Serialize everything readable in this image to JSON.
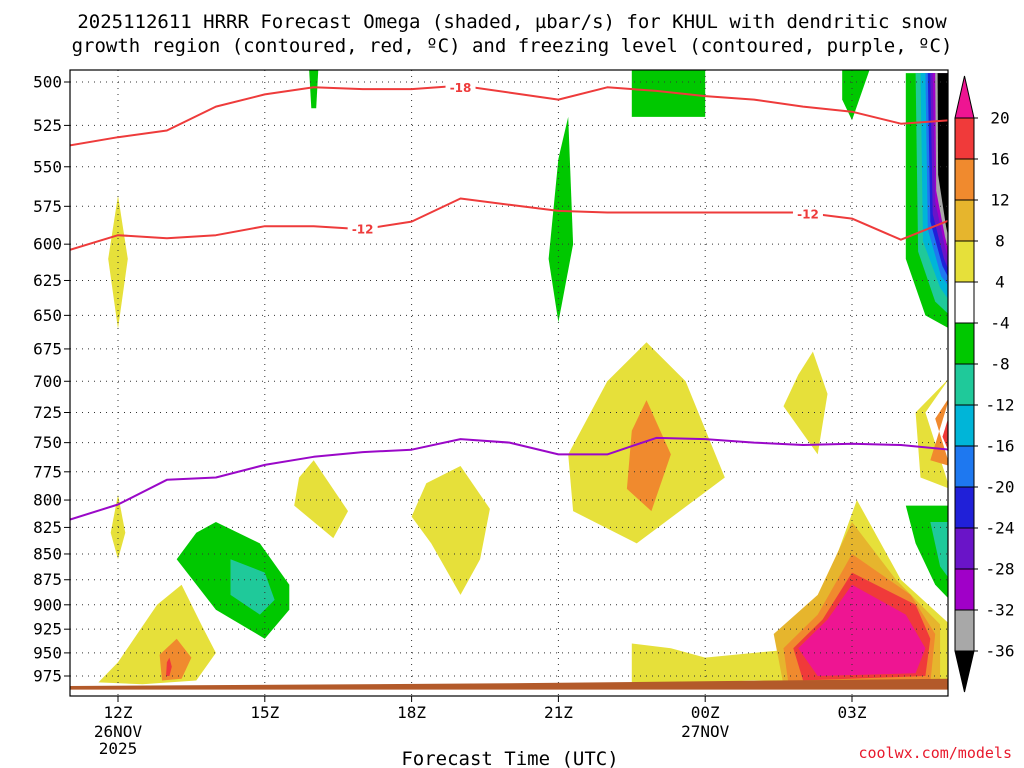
{
  "chart_data": {
    "type": "heatmap",
    "title_line1": "2025112611 HRRR Forecast Omega (shaded, µbar/s) for KHUL with dendritic snow",
    "title_line2": "growth region (contoured, red, ºC) and freezing level (contoured, purple, ºC)",
    "xlabel": "Forecast Time (UTC)",
    "credit": "coolwx.com/models",
    "y_levels_mb": [
      500,
      525,
      550,
      575,
      600,
      625,
      650,
      675,
      700,
      725,
      750,
      775,
      800,
      825,
      850,
      875,
      900,
      925,
      950,
      975
    ],
    "y_range_mb": [
      495,
      990
    ],
    "x_range_hours": [
      11,
      29
    ],
    "x_ticks": [
      {
        "hour": 12,
        "label": "12Z",
        "sub1": "26NOV",
        "sub2": "2025"
      },
      {
        "hour": 15,
        "label": "15Z",
        "sub1": "",
        "sub2": ""
      },
      {
        "hour": 18,
        "label": "18Z",
        "sub1": "",
        "sub2": ""
      },
      {
        "hour": 21,
        "label": "21Z",
        "sub1": "",
        "sub2": ""
      },
      {
        "hour": 24,
        "label": "00Z",
        "sub1": "27NOV",
        "sub2": ""
      },
      {
        "hour": 27,
        "label": "03Z",
        "sub1": "",
        "sub2": ""
      }
    ],
    "colorbar": {
      "labels": [
        "20",
        "16",
        "12",
        "8",
        "4",
        "-4",
        "-8",
        "-12",
        "-16",
        "-20",
        "-24",
        "-28",
        "-32",
        "-36"
      ],
      "colors": [
        "#ee1592",
        "#f03a3a",
        "#f08a2e",
        "#e6b52d",
        "#e6e03a",
        "#ffffff",
        "#00c800",
        "#1fc99a",
        "#00b5d8",
        "#1e78f0",
        "#2020d8",
        "#6a14c8",
        "#a000c8",
        "#a8a8a8",
        "#000000"
      ]
    },
    "series": [
      {
        "name": "-18 ºC isotherm (dendritic growth)",
        "label": "-18",
        "color": "#ee3b3b",
        "points": [
          [
            11,
            537
          ],
          [
            12,
            532
          ],
          [
            13,
            528
          ],
          [
            14,
            514
          ],
          [
            15,
            507
          ],
          [
            16,
            503
          ],
          [
            17,
            504
          ],
          [
            18,
            504
          ],
          [
            19,
            502
          ],
          [
            20,
            506
          ],
          [
            21,
            510
          ],
          [
            22,
            503
          ],
          [
            23,
            505
          ],
          [
            24,
            508
          ],
          [
            25,
            510
          ],
          [
            26,
            514
          ],
          [
            27,
            517
          ],
          [
            28,
            524
          ],
          [
            29,
            522
          ]
        ]
      },
      {
        "name": "-12 ºC isotherm (dendritic growth)",
        "label": "-12",
        "color": "#ee3b3b",
        "points": [
          [
            11,
            604
          ],
          [
            12,
            594
          ],
          [
            13,
            596
          ],
          [
            14,
            594
          ],
          [
            15,
            588
          ],
          [
            16,
            588
          ],
          [
            17,
            590
          ],
          [
            18,
            585
          ],
          [
            19,
            570
          ],
          [
            20,
            574
          ],
          [
            21,
            578
          ],
          [
            22,
            579
          ],
          [
            23,
            579
          ],
          [
            24,
            579
          ],
          [
            25,
            579
          ],
          [
            26,
            579
          ],
          [
            27,
            583
          ],
          [
            28,
            597
          ],
          [
            29,
            584
          ]
        ]
      },
      {
        "name": "Freezing level (0 ºC)",
        "label": "",
        "color": "#9a08c8",
        "points": [
          [
            11,
            818
          ],
          [
            12,
            804
          ],
          [
            13,
            782
          ],
          [
            14,
            780
          ],
          [
            15,
            769
          ],
          [
            16,
            762
          ],
          [
            17,
            758
          ],
          [
            18,
            756
          ],
          [
            19,
            747
          ],
          [
            20,
            750
          ],
          [
            21,
            760
          ],
          [
            22,
            760
          ],
          [
            23,
            746
          ],
          [
            24,
            747
          ],
          [
            25,
            750
          ],
          [
            26,
            752
          ],
          [
            27,
            751
          ],
          [
            28,
            752
          ],
          [
            29,
            756
          ]
        ]
      }
    ],
    "omega_regions": [
      {
        "color": "#e6e03a",
        "points": [
          [
            12,
            568
          ],
          [
            12.2,
            610
          ],
          [
            12,
            660
          ],
          [
            11.8,
            610
          ]
        ]
      },
      {
        "color": "#e6e03a",
        "points": [
          [
            12,
            795
          ],
          [
            12.15,
            830
          ],
          [
            12,
            855
          ],
          [
            11.85,
            830
          ]
        ]
      },
      {
        "color": "#e6e03a",
        "points": [
          [
            12.8,
            900
          ],
          [
            13.3,
            880
          ],
          [
            13.7,
            920
          ],
          [
            14,
            950
          ],
          [
            13.6,
            980
          ],
          [
            12.5,
            984
          ],
          [
            11.6,
            982
          ],
          [
            12,
            960
          ]
        ]
      },
      {
        "color": "#f08a2e",
        "points": [
          [
            12.85,
            952
          ],
          [
            13.2,
            935
          ],
          [
            13.5,
            955
          ],
          [
            13.3,
            978
          ],
          [
            12.9,
            980
          ]
        ]
      },
      {
        "color": "#f03a3a",
        "points": [
          [
            13,
            960
          ],
          [
            13.05,
            955
          ],
          [
            13.1,
            965
          ],
          [
            13.05,
            975
          ],
          [
            12.98,
            975
          ]
        ]
      },
      {
        "color": "#00c800",
        "points": [
          [
            14,
            820
          ],
          [
            14.9,
            840
          ],
          [
            15.5,
            880
          ],
          [
            15.5,
            905
          ],
          [
            15,
            935
          ],
          [
            14,
            905
          ],
          [
            13.2,
            855
          ],
          [
            13.6,
            830
          ]
        ]
      },
      {
        "color": "#1fc99a",
        "points": [
          [
            14.3,
            855
          ],
          [
            15,
            868
          ],
          [
            15.2,
            895
          ],
          [
            14.9,
            910
          ],
          [
            14.3,
            890
          ]
        ]
      },
      {
        "color": "#e6e03a",
        "points": [
          [
            16,
            765
          ],
          [
            16.7,
            810
          ],
          [
            16.4,
            835
          ],
          [
            15.6,
            805
          ],
          [
            15.7,
            780
          ]
        ]
      },
      {
        "color": "#00c800",
        "points": [
          [
            15.9,
            490
          ],
          [
            16.1,
            490
          ],
          [
            16.05,
            515
          ],
          [
            15.95,
            515
          ]
        ]
      },
      {
        "color": "#e6e03a",
        "points": [
          [
            19,
            770
          ],
          [
            19.6,
            808
          ],
          [
            19.4,
            855
          ],
          [
            19,
            890
          ],
          [
            18.4,
            840
          ],
          [
            18,
            815
          ],
          [
            18.3,
            785
          ]
        ]
      },
      {
        "color": "#00c800",
        "points": [
          [
            21.2,
            520
          ],
          [
            21.3,
            600
          ],
          [
            21,
            655
          ],
          [
            20.8,
            610
          ],
          [
            21,
            545
          ]
        ]
      },
      {
        "color": "#00c800",
        "points": [
          [
            22.5,
            490
          ],
          [
            24,
            490
          ],
          [
            24,
            520
          ],
          [
            22.5,
            520
          ]
        ]
      },
      {
        "color": "#e6e03a",
        "points": [
          [
            22.8,
            670
          ],
          [
            23.6,
            700
          ],
          [
            24.4,
            780
          ],
          [
            22.6,
            840
          ],
          [
            21.3,
            810
          ],
          [
            21.2,
            760
          ],
          [
            22,
            700
          ]
        ]
      },
      {
        "color": "#f08a2e",
        "points": [
          [
            22.8,
            715
          ],
          [
            23.3,
            760
          ],
          [
            22.9,
            810
          ],
          [
            22.4,
            790
          ],
          [
            22.5,
            740
          ]
        ]
      },
      {
        "color": "#e6e03a",
        "points": [
          [
            26.2,
            677
          ],
          [
            26.5,
            710
          ],
          [
            26.3,
            760
          ],
          [
            25.6,
            720
          ],
          [
            25.9,
            695
          ]
        ]
      },
      {
        "color": "#00c800",
        "points": [
          [
            26.8,
            490
          ],
          [
            27.4,
            490
          ],
          [
            27,
            522
          ],
          [
            26.8,
            510
          ]
        ]
      },
      {
        "color": "#e6e03a",
        "points": [
          [
            22.5,
            940
          ],
          [
            23.3,
            945
          ],
          [
            24,
            955
          ],
          [
            26,
            945
          ],
          [
            27.1,
            800
          ],
          [
            28,
            875
          ],
          [
            29,
            920
          ],
          [
            29,
            990
          ],
          [
            25,
            980
          ],
          [
            22.5,
            985
          ]
        ]
      },
      {
        "color": "#e6b52d",
        "points": [
          [
            27,
            820
          ],
          [
            27.9,
            875
          ],
          [
            28.8,
            920
          ],
          [
            28.8,
            985
          ],
          [
            25.6,
            985
          ],
          [
            25.4,
            930
          ],
          [
            26.3,
            890
          ]
        ]
      },
      {
        "color": "#f08a2e",
        "points": [
          [
            27,
            850
          ],
          [
            28.2,
            890
          ],
          [
            28.7,
            930
          ],
          [
            28.6,
            983
          ],
          [
            25.7,
            983
          ],
          [
            25.6,
            945
          ],
          [
            26.3,
            910
          ]
        ]
      },
      {
        "color": "#f03a3a",
        "points": [
          [
            27,
            868
          ],
          [
            28.3,
            900
          ],
          [
            28.6,
            935
          ],
          [
            28.5,
            975
          ],
          [
            26,
            980
          ],
          [
            25.8,
            945
          ],
          [
            26.4,
            915
          ]
        ]
      },
      {
        "color": "#ee1592",
        "points": [
          [
            27,
            880
          ],
          [
            28.1,
            910
          ],
          [
            28.5,
            945
          ],
          [
            28.3,
            972
          ],
          [
            26.3,
            975
          ],
          [
            25.9,
            945
          ],
          [
            26.5,
            915
          ]
        ]
      },
      {
        "color": "#e6e03a",
        "points": [
          [
            29,
            697
          ],
          [
            28.5,
            725
          ],
          [
            29,
            790
          ],
          [
            28.4,
            780
          ],
          [
            28.3,
            725
          ]
        ]
      },
      {
        "color": "#f08a2e",
        "points": [
          [
            29,
            712
          ],
          [
            28.7,
            730
          ],
          [
            29,
            770
          ],
          [
            28.6,
            765
          ]
        ]
      },
      {
        "color": "#f03a3a",
        "points": [
          [
            29,
            725
          ],
          [
            28.85,
            745
          ],
          [
            29,
            760
          ]
        ]
      },
      {
        "color": "#00c800",
        "points": [
          [
            28.1,
            805
          ],
          [
            29,
            805
          ],
          [
            29,
            895
          ],
          [
            28.7,
            880
          ],
          [
            28.3,
            840
          ]
        ]
      },
      {
        "color": "#1fc99a",
        "points": [
          [
            28.6,
            820
          ],
          [
            29,
            820
          ],
          [
            29,
            875
          ],
          [
            28.8,
            862
          ]
        ]
      },
      {
        "color": "#00c800",
        "points": [
          [
            28.1,
            495
          ],
          [
            29,
            495
          ],
          [
            29,
            660
          ],
          [
            28.5,
            650
          ],
          [
            28.1,
            610
          ]
        ]
      },
      {
        "color": "#1fc99a",
        "points": [
          [
            28.3,
            495
          ],
          [
            29,
            495
          ],
          [
            29,
            650
          ],
          [
            28.7,
            640
          ],
          [
            28.35,
            605
          ]
        ]
      },
      {
        "color": "#00b5d8",
        "points": [
          [
            28.4,
            495
          ],
          [
            29,
            495
          ],
          [
            29,
            640
          ],
          [
            28.8,
            630
          ],
          [
            28.45,
            598
          ]
        ]
      },
      {
        "color": "#1e78f0",
        "points": [
          [
            28.5,
            495
          ],
          [
            29,
            495
          ],
          [
            29,
            630
          ],
          [
            28.82,
            622
          ],
          [
            28.55,
            590
          ]
        ]
      },
      {
        "color": "#2020d8",
        "points": [
          [
            28.55,
            495
          ],
          [
            29,
            495
          ],
          [
            29,
            625
          ],
          [
            28.85,
            615
          ],
          [
            28.6,
            585
          ]
        ]
      },
      {
        "color": "#6a14c8",
        "points": [
          [
            28.6,
            495
          ],
          [
            29,
            495
          ],
          [
            29,
            620
          ],
          [
            28.88,
            610
          ],
          [
            28.65,
            580
          ]
        ]
      },
      {
        "color": "#a000c8",
        "points": [
          [
            28.65,
            495
          ],
          [
            29,
            495
          ],
          [
            29,
            615
          ],
          [
            28.9,
            602
          ],
          [
            28.7,
            572
          ]
        ]
      },
      {
        "color": "#a8a8a8",
        "points": [
          [
            28.7,
            495
          ],
          [
            29,
            495
          ],
          [
            29,
            608
          ],
          [
            28.9,
            595
          ],
          [
            28.72,
            565
          ]
        ]
      },
      {
        "color": "#000000",
        "points": [
          [
            28.75,
            495
          ],
          [
            29,
            495
          ],
          [
            29,
            600
          ],
          [
            28.92,
            588
          ],
          [
            28.76,
            555
          ]
        ]
      }
    ],
    "terrain": {
      "color": "#b35a2a",
      "points": [
        [
          11,
          990
        ],
        [
          11,
          986
        ],
        [
          20,
          983
        ],
        [
          29,
          978
        ],
        [
          29,
          990
        ]
      ]
    },
    "contour_labels": [
      {
        "text": "-18",
        "hour": 19,
        "mb": 503,
        "color": "#ee3b3b"
      },
      {
        "text": "-12",
        "hour": 17,
        "mb": 590,
        "color": "#ee3b3b"
      },
      {
        "text": "-12",
        "hour": 26.1,
        "mb": 580,
        "color": "#ee3b3b"
      }
    ]
  }
}
